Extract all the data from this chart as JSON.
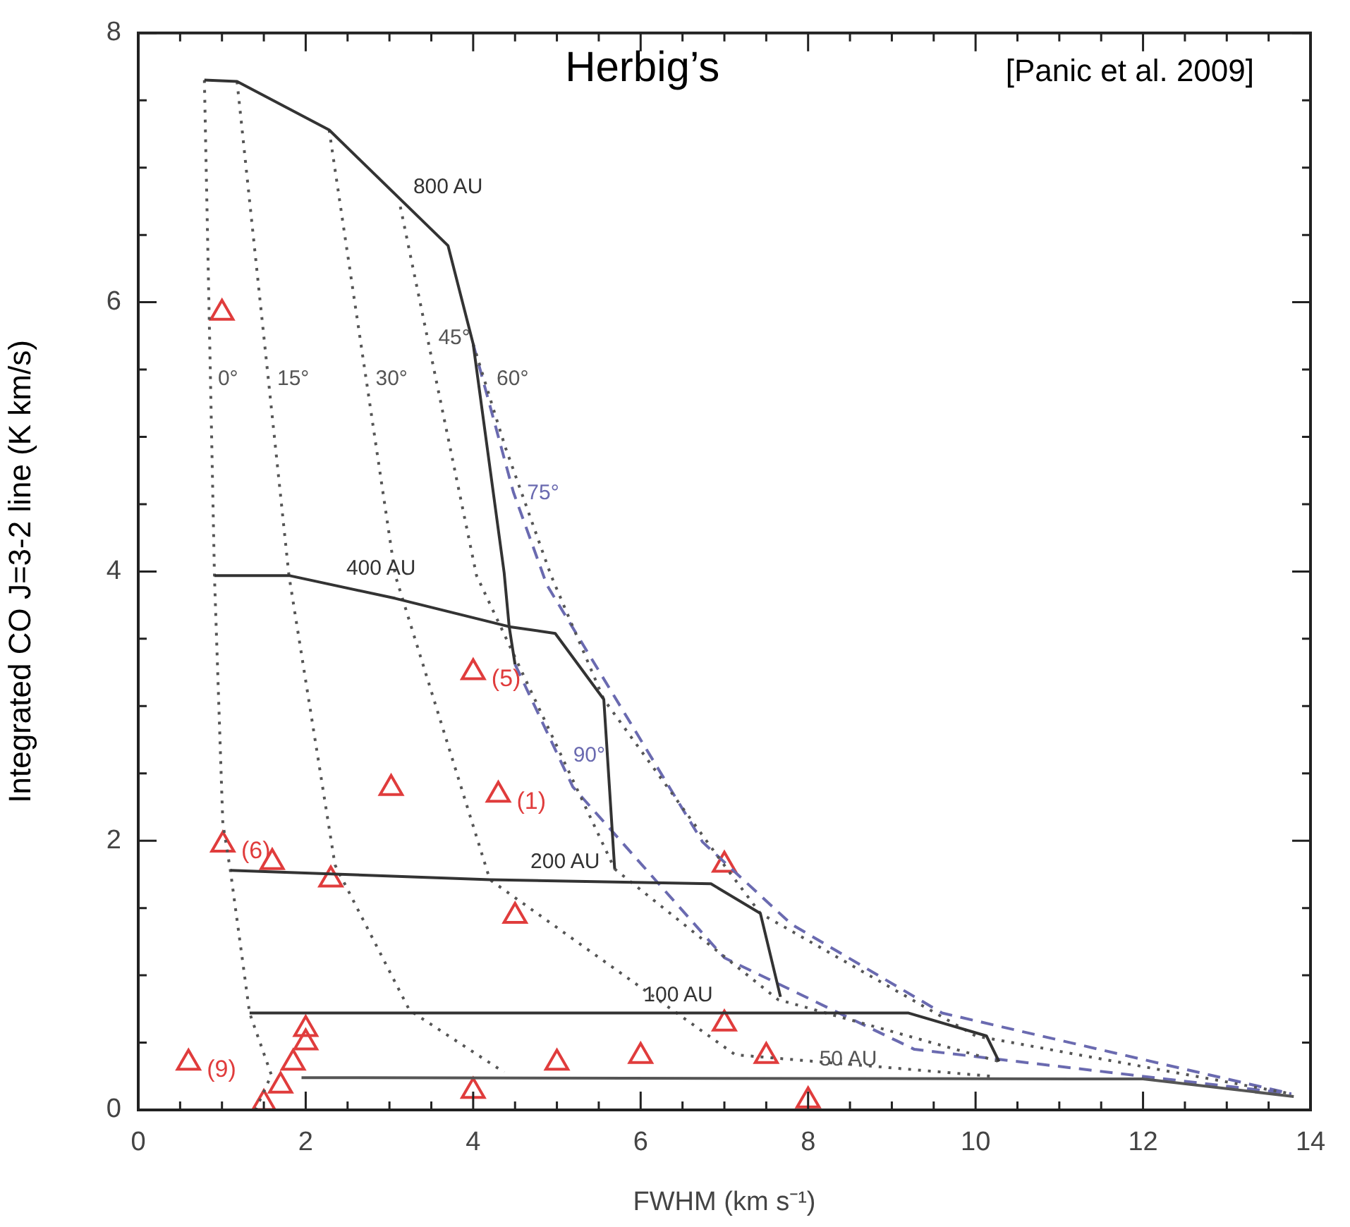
{
  "chart_data": {
    "type": "scatter",
    "title": "Herbig’s",
    "xlabel": "FWHM (km s⁻¹)",
    "ylabel": "Integrated CO J=3-2 line (K km/s)",
    "xlim": [
      0,
      14
    ],
    "ylim": [
      0,
      8
    ],
    "xticks": [
      0,
      {
        "value": 0.5,
        "label": null
      },
      {
        "value": 1,
        "label": null
      },
      {
        "value": 1.5,
        "label": null
      },
      2,
      {
        "value": 2.5,
        "label": null
      },
      {
        "value": 3,
        "label": null
      },
      {
        "value": 3.5,
        "label": null
      },
      4,
      {
        "value": 4.5,
        "label": null
      },
      {
        "value": 5,
        "label": null
      },
      {
        "value": 5.5,
        "label": null
      },
      6,
      {
        "value": 6.5,
        "label": null
      },
      {
        "value": 7,
        "label": null
      },
      {
        "value": 7.5,
        "label": null
      },
      8,
      {
        "value": 8.5,
        "label": null
      },
      {
        "value": 9,
        "label": null
      },
      {
        "value": 9.5,
        "label": null
      },
      10,
      {
        "value": 10.5,
        "label": null
      },
      {
        "value": 11,
        "label": null
      },
      {
        "value": 11.5,
        "label": null
      },
      12,
      {
        "value": 12.5,
        "label": null
      },
      {
        "value": 13,
        "label": null
      },
      {
        "value": 13.5,
        "label": null
      },
      14
    ],
    "yticks": [
      0,
      {
        "value": 0.5,
        "label": null
      },
      {
        "value": 1,
        "label": null
      },
      {
        "value": 1.5,
        "label": null
      },
      2,
      {
        "value": 2.5,
        "label": null
      },
      {
        "value": 3,
        "label": null
      },
      {
        "value": 3.5,
        "label": null
      },
      4,
      {
        "value": 4.5,
        "label": null
      },
      {
        "value": 5,
        "label": null
      },
      {
        "value": 5.5,
        "label": null
      },
      6,
      {
        "value": 6.5,
        "label": null
      },
      {
        "value": 7,
        "label": null
      },
      {
        "value": 7.5,
        "label": null
      },
      8
    ],
    "grid": false,
    "legend": false,
    "marker": "triangle",
    "series": [
      {
        "type": "line",
        "color": "#333333",
        "line_style": "solid",
        "marker": "none",
        "x": [
          0.79,
          1.18,
          2.28,
          3.7,
          4.0,
          4.37,
          4.43,
          4.5
        ],
        "values": [
          7.65,
          7.64,
          7.28,
          6.42,
          5.69,
          3.99,
          3.59,
          3.31
        ]
      },
      {
        "type": "line",
        "color": "#333333",
        "line_style": "solid",
        "marker": "none",
        "x": [
          0.91,
          1.8,
          3.07,
          4.43,
          4.98,
          5.56,
          5.69
        ],
        "values": [
          3.97,
          3.97,
          3.8,
          3.59,
          3.54,
          3.05,
          1.79
        ]
      },
      {
        "type": "line",
        "color": "#333333",
        "line_style": "solid",
        "marker": "none",
        "x": [
          1.1,
          4.2,
          6.84,
          7.43,
          7.67
        ],
        "values": [
          1.78,
          1.71,
          1.68,
          1.46,
          0.84
        ]
      },
      {
        "type": "line",
        "color": "#333333",
        "line_style": "solid",
        "marker": "none",
        "x": [
          1.33,
          9.2,
          10.13,
          10.28
        ],
        "values": [
          0.72,
          0.72,
          0.55,
          0.36
        ]
      },
      {
        "type": "line",
        "color": "#555555",
        "line_style": "solid",
        "marker": "none",
        "x": [
          1.95,
          12.0,
          13.8
        ],
        "values": [
          0.24,
          0.23,
          0.1
        ]
      },
      {
        "type": "line",
        "color": "#555555",
        "line_style": "dotted",
        "marker": "none",
        "x": [
          0.79,
          0.91,
          1.01,
          1.1,
          1.33,
          1.59,
          1.4
        ],
        "values": [
          7.65,
          3.97,
          2.13,
          1.78,
          0.72,
          0.26,
          0.0
        ]
      },
      {
        "type": "line",
        "color": "#555555",
        "line_style": "dotted",
        "marker": "none",
        "x": [
          1.18,
          1.8,
          2.35,
          3.24,
          4.37
        ],
        "values": [
          7.64,
          3.97,
          1.82,
          0.74,
          0.28
        ]
      },
      {
        "type": "line",
        "color": "#555555",
        "line_style": "dotted",
        "marker": "none",
        "x": [
          2.28,
          3.07,
          4.2,
          7.13,
          10.2
        ],
        "values": [
          7.28,
          3.97,
          1.71,
          0.41,
          0.25
        ]
      },
      {
        "type": "line",
        "color": "#555555",
        "line_style": "dotted",
        "marker": "none",
        "x": [
          3.13,
          4.04,
          5.69,
          7.64,
          10.28
        ],
        "values": [
          6.71,
          3.97,
          1.79,
          0.82,
          0.36
        ]
      },
      {
        "type": "line",
        "color": "#555555",
        "line_style": "dotted",
        "marker": "none",
        "x": [
          4.0,
          4.38,
          4.93,
          5.56,
          6.96,
          7.43,
          10.0,
          13.77
        ],
        "values": [
          5.69,
          4.93,
          3.97,
          3.05,
          1.85,
          1.46,
          0.55,
          0.12
        ]
      },
      {
        "type": "line",
        "color": "#6a6ab0",
        "line_style": "dashed",
        "marker": "none",
        "x": [
          4.0,
          4.48,
          4.88,
          6.74,
          7.8,
          9.6,
          13.77
        ],
        "values": [
          5.69,
          4.59,
          3.9,
          1.99,
          1.38,
          0.72,
          0.12
        ]
      },
      {
        "type": "line",
        "color": "#6a6ab0",
        "line_style": "dashed",
        "marker": "none",
        "x": [
          4.5,
          5.19,
          7.0,
          9.27,
          13.77
        ],
        "values": [
          3.31,
          2.4,
          1.13,
          0.45,
          0.12
        ]
      },
      {
        "color": "#e03c3c",
        "x": [
          1.0,
          1.01,
          1.6,
          2.3,
          3.02,
          4.0,
          4.3,
          4.5,
          7.0,
          7.0,
          7.5,
          8.0,
          6.0,
          5.0,
          4.0,
          0.6,
          2.0,
          2.0,
          1.85,
          1.7,
          1.5
        ],
        "values": [
          5.92,
          1.97,
          1.84,
          1.71,
          2.39,
          3.25,
          2.34,
          1.44,
          1.82,
          0.64,
          0.4,
          0.07,
          0.4,
          0.35,
          0.14,
          0.35,
          0.6,
          0.5,
          0.35,
          0.18,
          0.05
        ]
      }
    ],
    "annotations": [
      "[Panic et al. 2009]",
      {
        "text": "800 AU",
        "x": 3.2,
        "y": 6.72
      },
      {
        "text": "400 AU",
        "x": 2.4,
        "y": 3.89
      },
      {
        "text": "200 AU",
        "x": 4.6,
        "y": 1.71
      },
      {
        "text": "100 AU",
        "x": 5.95,
        "y": 0.72
      },
      {
        "text": "50 AU",
        "x": 8.05,
        "y": 0.24
      },
      {
        "text": "0°",
        "x": 0.867,
        "y": 5.3
      },
      {
        "text": "15°",
        "x": 1.575,
        "y": 5.3
      },
      {
        "text": "30°",
        "x": 2.75,
        "y": 5.3
      },
      {
        "text": "45°",
        "x": 3.499,
        "y": 5.6
      },
      {
        "text": "60°",
        "x": 4.195,
        "y": 5.3
      },
      {
        "text": "75°",
        "x": 4.56,
        "y": 4.45
      },
      {
        "text": "90°",
        "x": 5.11,
        "y": 2.5
      },
      {
        "text": "(6)",
        "x": 1.01,
        "y": 1.97
      },
      {
        "text": "(5)",
        "x": 4.0,
        "y": 3.25
      },
      {
        "text": "(1)",
        "x": 4.3,
        "y": 2.34
      },
      {
        "text": "(9)",
        "x": 0.6,
        "y": 0.35
      }
    ]
  }
}
